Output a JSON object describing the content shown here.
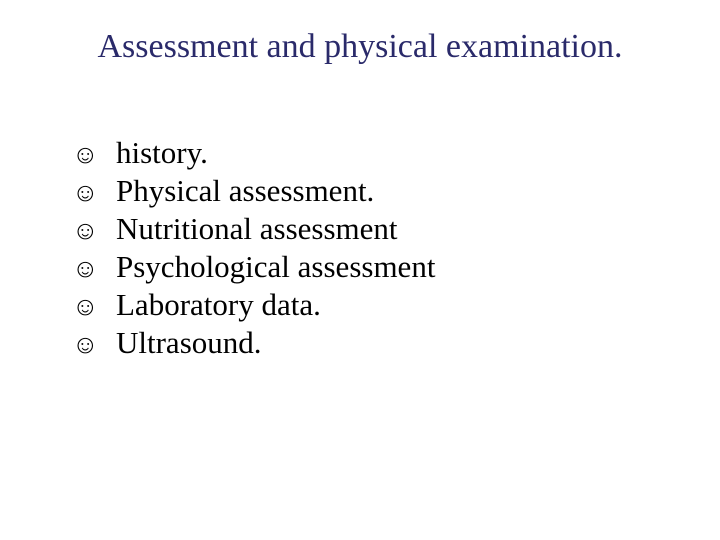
{
  "title": "Assessment and physical examination.",
  "title_color": "#2a2a6a",
  "title_fontsize": 34,
  "background_color": "#ffffff",
  "text_color": "#000000",
  "item_fontsize": 31,
  "bullet_glyph": "☺",
  "bullet_fontsize": 26,
  "items": [
    {
      "text": "history."
    },
    {
      "text": "Physical assessment."
    },
    {
      "text": "Nutritional assessment"
    },
    {
      "text": "Psychological assessment"
    },
    {
      "text": "Laboratory data."
    },
    {
      "text": "Ultrasound."
    }
  ]
}
